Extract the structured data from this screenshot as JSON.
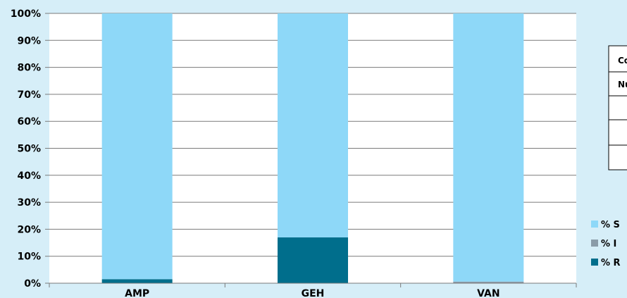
{
  "chart_data": {
    "type": "bar",
    "stacked": true,
    "categories": [
      "AMP",
      "GEH",
      "VAN"
    ],
    "series": [
      {
        "name": "% R",
        "values": [
          1.5,
          17,
          0
        ],
        "color": "#006e8c"
      },
      {
        "name": "% I",
        "values": [
          0,
          0,
          0.6
        ],
        "color": "#8a9ba8"
      },
      {
        "name": "% S",
        "values": [
          98.5,
          83,
          99.4
        ],
        "color": "#8ed8f8"
      }
    ],
    "ylim": [
      0,
      100
    ],
    "yticks": [
      "0%",
      "10%",
      "20%",
      "30%",
      "40%",
      "50%",
      "60%",
      "70%",
      "80%",
      "90%",
      "100%"
    ],
    "legend_order": [
      "% S",
      "% I",
      "% R"
    ],
    "legend_position": "right",
    "grid": true
  },
  "table_fragment": {
    "row_labels": [
      "Co",
      "Nu"
    ]
  }
}
